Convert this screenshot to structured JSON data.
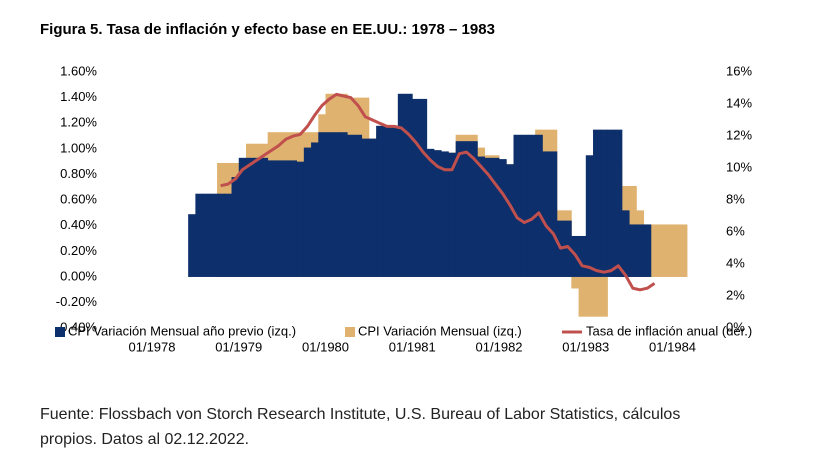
{
  "chart_data": {
    "type": "bar",
    "title": "Figura 5. Tasa de inflación y efecto base en EE.UU.: 1978 – 1983",
    "categories": [
      "01/1978",
      null,
      null,
      null,
      null,
      null,
      null,
      null,
      null,
      null,
      null,
      null,
      "01/1979",
      null,
      null,
      null,
      null,
      null,
      null,
      null,
      null,
      null,
      null,
      null,
      "01/1980",
      null,
      null,
      null,
      null,
      null,
      null,
      null,
      null,
      null,
      null,
      null,
      "01/1981",
      null,
      null,
      null,
      null,
      null,
      null,
      null,
      null,
      null,
      null,
      null,
      "01/1982",
      null,
      null,
      null,
      null,
      null,
      null,
      null,
      null,
      null,
      null,
      null,
      "01/1983",
      null,
      null,
      null,
      null,
      null,
      null,
      null,
      null,
      null,
      null,
      null,
      "01/1984",
      null
    ],
    "series": [
      {
        "name": "CPI Variación Mensual (izq.)",
        "type": "bar",
        "color": "#e0b270",
        "values": [
          null,
          null,
          null,
          null,
          null,
          null,
          null,
          null,
          null,
          0.89,
          0.89,
          0.89,
          0.89,
          1.04,
          1.04,
          1.04,
          1.13,
          1.13,
          1.13,
          1.13,
          1.13,
          1.13,
          1.13,
          1.27,
          1.43,
          1.43,
          1.43,
          1.4,
          1.4,
          1.4,
          1.08,
          1.13,
          1.13,
          1.13,
          1.13,
          1.13,
          1.11,
          1.0,
          0.99,
          0.98,
          0.97,
          0.97,
          1.11,
          1.11,
          1.11,
          1.01,
          0.95,
          0.95,
          0.9,
          0.88,
          1.05,
          1.05,
          1.05,
          1.15,
          1.15,
          1.15,
          0.52,
          0.52,
          -0.09,
          -0.31,
          -0.31,
          -0.31,
          -0.31,
          0.4,
          0.9,
          0.71,
          0.71,
          0.52,
          0.41,
          0.41,
          0.41,
          0.41,
          0.41,
          0.41
        ]
      },
      {
        "name": "CPI Variación Mensual año previo (izq.)",
        "type": "bar",
        "color": "#0d2f6b",
        "values": [
          null,
          null,
          null,
          null,
          null,
          0.49,
          0.65,
          0.65,
          0.65,
          0.65,
          0.65,
          0.78,
          0.93,
          0.93,
          0.93,
          0.93,
          0.91,
          0.91,
          0.91,
          0.91,
          0.9,
          1.01,
          1.05,
          1.13,
          1.13,
          1.13,
          1.13,
          1.11,
          1.11,
          1.08,
          1.08,
          1.18,
          1.18,
          1.18,
          1.43,
          1.43,
          1.39,
          1.39,
          1.0,
          0.99,
          0.98,
          0.97,
          1.06,
          1.06,
          1.06,
          0.94,
          0.93,
          0.93,
          0.92,
          0.88,
          1.11,
          1.11,
          1.11,
          1.11,
          0.98,
          0.98,
          0.44,
          0.44,
          0.32,
          0.32,
          0.95,
          1.15,
          1.15,
          1.15,
          1.15,
          0.52,
          0.41,
          0.41,
          0.41,
          null,
          null,
          null,
          null,
          null
        ]
      },
      {
        "name": "Tasa de inflación anual (der.)",
        "type": "line",
        "axis": "y2",
        "color": "#c0504d",
        "values": [
          null,
          null,
          null,
          null,
          null,
          null,
          null,
          null,
          null,
          8.9,
          9.0,
          9.3,
          9.9,
          10.2,
          10.5,
          10.8,
          11.1,
          11.4,
          11.8,
          12.0,
          12.1,
          12.6,
          13.3,
          13.9,
          14.3,
          14.6,
          14.5,
          14.4,
          13.9,
          13.2,
          13.0,
          12.8,
          12.6,
          12.6,
          12.5,
          12.1,
          11.6,
          11.0,
          10.5,
          10.1,
          9.9,
          9.9,
          10.9,
          11.0,
          10.6,
          10.1,
          9.6,
          9.0,
          8.4,
          7.7,
          6.9,
          6.6,
          6.8,
          7.2,
          6.4,
          5.9,
          5.0,
          5.1,
          4.6,
          3.9,
          3.8,
          3.6,
          3.5,
          3.6,
          3.9,
          3.3,
          2.5,
          2.4,
          2.5,
          2.8,
          null,
          null,
          null,
          null
        ]
      }
    ],
    "ylim": [
      -0.4,
      1.6
    ],
    "yticks": [
      {
        "value": -0.4,
        "label": "-0.40%"
      },
      {
        "value": -0.2,
        "label": "-0.20%"
      },
      {
        "value": 0,
        "label": "0.00%"
      },
      {
        "value": 0.2,
        "label": "0.20%"
      },
      {
        "value": 0.4,
        "label": "0.40%"
      },
      {
        "value": 0.6,
        "label": "0.60%"
      },
      {
        "value": 0.8,
        "label": "0.80%"
      },
      {
        "value": 1.0,
        "label": "1.00%"
      },
      {
        "value": 1.2,
        "label": "1.20%"
      },
      {
        "value": 1.4,
        "label": "1.40%"
      },
      {
        "value": 1.6,
        "label": "1.60%"
      }
    ],
    "y2lim": [
      0,
      16
    ],
    "y2ticks": [
      {
        "value": 0,
        "label": "0%"
      },
      {
        "value": 2,
        "label": "2%"
      },
      {
        "value": 4,
        "label": "4%"
      },
      {
        "value": 6,
        "label": "6%"
      },
      {
        "value": 8,
        "label": "8%"
      },
      {
        "value": 10,
        "label": "10%"
      },
      {
        "value": 12,
        "label": "12%"
      },
      {
        "value": 14,
        "label": "14%"
      },
      {
        "value": 16,
        "label": "16%"
      }
    ],
    "grid": false,
    "legend": "bottom"
  },
  "footer": {
    "lines": [
      "Fuente: Flossbach von Storch Research Institute, U.S. Bureau of Labor Statistics, cálculos",
      "propios. Datos al 02.12.2022."
    ]
  }
}
